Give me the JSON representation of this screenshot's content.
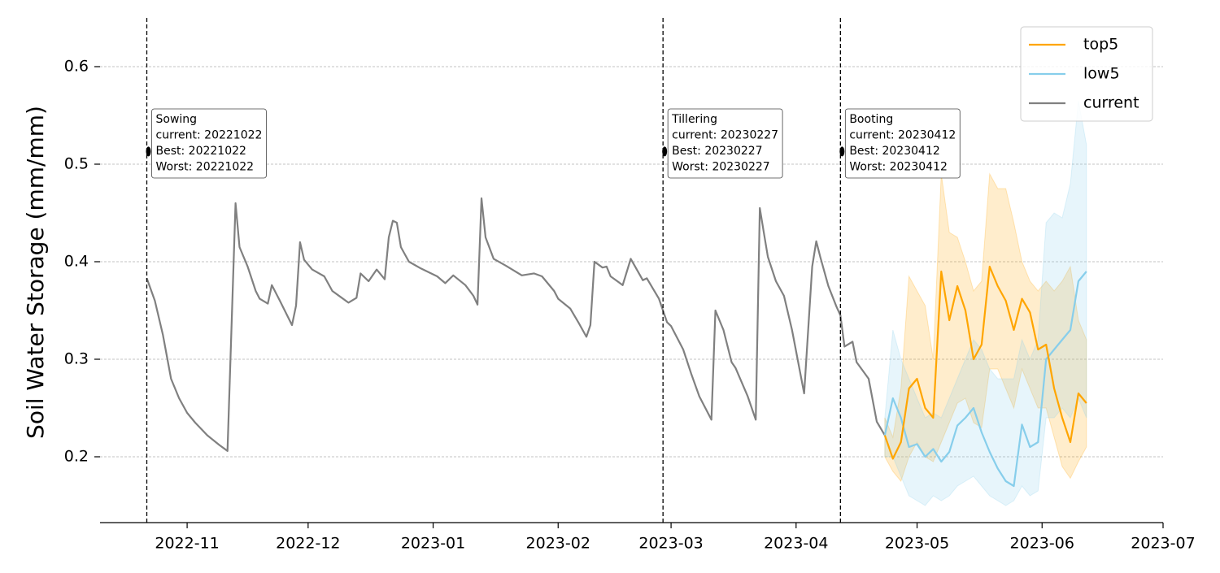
{
  "chart_data": {
    "type": "line",
    "ylabel": "Soil Water Storage (mm/mm)",
    "xlim": [
      "2022-10-10",
      "2023-07-01"
    ],
    "ylim": [
      0.1325,
      0.65
    ],
    "xticks": [
      {
        "value": "2022-11-01",
        "label": "2022-11"
      },
      {
        "value": "2022-12-01",
        "label": "2022-12"
      },
      {
        "value": "2023-01-01",
        "label": "2023-01"
      },
      {
        "value": "2023-02-01",
        "label": "2023-02"
      },
      {
        "value": "2023-03-01",
        "label": "2023-03"
      },
      {
        "value": "2023-04-01",
        "label": "2023-04"
      },
      {
        "value": "2023-05-01",
        "label": "2023-05"
      },
      {
        "value": "2023-06-01",
        "label": "2023-06"
      },
      {
        "value": "2023-07-01",
        "label": "2023-07"
      }
    ],
    "yticks": [
      0.2,
      0.3,
      0.4,
      0.5,
      0.6
    ],
    "grid": true,
    "legend": "upper right",
    "series": [
      {
        "name": "top5",
        "color": "#ffa500",
        "x": [
          "2023-04-23",
          "2023-04-25",
          "2023-04-27",
          "2023-04-29",
          "2023-05-01",
          "2023-05-03",
          "2023-05-05",
          "2023-05-07",
          "2023-05-09",
          "2023-05-11",
          "2023-05-13",
          "2023-05-15",
          "2023-05-17",
          "2023-05-19",
          "2023-05-21",
          "2023-05-23",
          "2023-05-25",
          "2023-05-27",
          "2023-05-29",
          "2023-05-31",
          "2023-06-02",
          "2023-06-04",
          "2023-06-06",
          "2023-06-08",
          "2023-06-10",
          "2023-06-12"
        ],
        "values": [
          0.222,
          0.198,
          0.215,
          0.27,
          0.28,
          0.25,
          0.24,
          0.39,
          0.34,
          0.375,
          0.35,
          0.3,
          0.315,
          0.395,
          0.375,
          0.36,
          0.33,
          0.362,
          0.348,
          0.31,
          0.315,
          0.27,
          0.24,
          0.215,
          0.265,
          0.255
        ],
        "upper": [
          0.24,
          0.22,
          0.27,
          0.385,
          0.37,
          0.355,
          0.3,
          0.49,
          0.43,
          0.425,
          0.4,
          0.37,
          0.38,
          0.49,
          0.475,
          0.475,
          0.44,
          0.4,
          0.38,
          0.37,
          0.38,
          0.37,
          0.38,
          0.395,
          0.34,
          0.32
        ],
        "lower": [
          0.2,
          0.185,
          0.175,
          0.2,
          0.215,
          0.2,
          0.195,
          0.215,
          0.235,
          0.255,
          0.26,
          0.235,
          0.23,
          0.29,
          0.29,
          0.27,
          0.25,
          0.29,
          0.27,
          0.25,
          0.25,
          0.22,
          0.19,
          0.178,
          0.195,
          0.21
        ]
      },
      {
        "name": "low5",
        "color": "#87ceeb",
        "x": [
          "2023-04-23",
          "2023-04-25",
          "2023-04-27",
          "2023-04-29",
          "2023-05-01",
          "2023-05-03",
          "2023-05-05",
          "2023-05-07",
          "2023-05-09",
          "2023-05-11",
          "2023-05-13",
          "2023-05-15",
          "2023-05-17",
          "2023-05-19",
          "2023-05-21",
          "2023-05-23",
          "2023-05-25",
          "2023-05-27",
          "2023-05-29",
          "2023-05-31",
          "2023-06-02",
          "2023-06-04",
          "2023-06-06",
          "2023-06-08",
          "2023-06-10",
          "2023-06-12"
        ],
        "values": [
          0.222,
          0.26,
          0.24,
          0.21,
          0.213,
          0.2,
          0.208,
          0.195,
          0.205,
          0.232,
          0.24,
          0.25,
          0.225,
          0.205,
          0.188,
          0.175,
          0.17,
          0.233,
          0.21,
          0.215,
          0.3,
          0.31,
          0.32,
          0.33,
          0.38,
          0.39
        ],
        "upper": [
          0.24,
          0.33,
          0.3,
          0.28,
          0.26,
          0.24,
          0.245,
          0.24,
          0.26,
          0.28,
          0.3,
          0.32,
          0.31,
          0.29,
          0.28,
          0.28,
          0.28,
          0.32,
          0.3,
          0.32,
          0.44,
          0.45,
          0.445,
          0.48,
          0.565,
          0.52
        ],
        "lower": [
          0.2,
          0.2,
          0.18,
          0.16,
          0.155,
          0.15,
          0.16,
          0.155,
          0.16,
          0.17,
          0.175,
          0.18,
          0.17,
          0.16,
          0.155,
          0.15,
          0.155,
          0.17,
          0.16,
          0.165,
          0.24,
          0.24,
          0.25,
          0.24,
          0.26,
          0.24
        ]
      },
      {
        "name": "current",
        "color": "#808080",
        "x": [
          "2022-10-22",
          "2022-10-24",
          "2022-10-26",
          "2022-10-28",
          "2022-10-30",
          "2022-11-01",
          "2022-11-03",
          "2022-11-06",
          "2022-11-09",
          "2022-11-11",
          "2022-11-13",
          "2022-11-14",
          "2022-11-16",
          "2022-11-18",
          "2022-11-19",
          "2022-11-21",
          "2022-11-22",
          "2022-11-24",
          "2022-11-27",
          "2022-11-28",
          "2022-11-29",
          "2022-11-30",
          "2022-12-02",
          "2022-12-05",
          "2022-12-07",
          "2022-12-09",
          "2022-12-11",
          "2022-12-13",
          "2022-12-14",
          "2022-12-16",
          "2022-12-18",
          "2022-12-20",
          "2022-12-21",
          "2022-12-22",
          "2022-12-23",
          "2022-12-24",
          "2022-12-26",
          "2022-12-29",
          "2023-01-02",
          "2023-01-04",
          "2023-01-06",
          "2023-01-09",
          "2023-01-11",
          "2023-01-12",
          "2023-01-13",
          "2023-01-14",
          "2023-01-16",
          "2023-01-19",
          "2023-01-21",
          "2023-01-23",
          "2023-01-26",
          "2023-01-28",
          "2023-01-31",
          "2023-02-01",
          "2023-02-04",
          "2023-02-06",
          "2023-02-08",
          "2023-02-09",
          "2023-02-10",
          "2023-02-12",
          "2023-02-13",
          "2023-02-14",
          "2023-02-17",
          "2023-02-19",
          "2023-02-22",
          "2023-02-23",
          "2023-02-26",
          "2023-02-28",
          "2023-03-01",
          "2023-03-04",
          "2023-03-06",
          "2023-03-08",
          "2023-03-11",
          "2023-03-12",
          "2023-03-14",
          "2023-03-16",
          "2023-03-17",
          "2023-03-20",
          "2023-03-22",
          "2023-03-23",
          "2023-03-24",
          "2023-03-25",
          "2023-03-27",
          "2023-03-29",
          "2023-03-31",
          "2023-04-03",
          "2023-04-05",
          "2023-04-06",
          "2023-04-07",
          "2023-04-09",
          "2023-04-11",
          "2023-04-12",
          "2023-04-13",
          "2023-04-15",
          "2023-04-16",
          "2023-04-19",
          "2023-04-21",
          "2023-04-23"
        ],
        "values": [
          0.383,
          0.36,
          0.325,
          0.28,
          0.26,
          0.245,
          0.235,
          0.222,
          0.212,
          0.206,
          0.46,
          0.415,
          0.395,
          0.37,
          0.362,
          0.357,
          0.376,
          0.36,
          0.335,
          0.355,
          0.42,
          0.402,
          0.392,
          0.385,
          0.37,
          0.364,
          0.358,
          0.363,
          0.388,
          0.38,
          0.392,
          0.382,
          0.425,
          0.442,
          0.44,
          0.415,
          0.4,
          0.393,
          0.385,
          0.378,
          0.386,
          0.376,
          0.365,
          0.356,
          0.465,
          0.425,
          0.403,
          0.396,
          0.391,
          0.386,
          0.388,
          0.385,
          0.37,
          0.362,
          0.352,
          0.338,
          0.323,
          0.335,
          0.4,
          0.394,
          0.395,
          0.385,
          0.376,
          0.403,
          0.381,
          0.383,
          0.362,
          0.338,
          0.334,
          0.31,
          0.285,
          0.262,
          0.238,
          0.35,
          0.33,
          0.297,
          0.291,
          0.262,
          0.238,
          0.455,
          0.43,
          0.405,
          0.38,
          0.365,
          0.33,
          0.265,
          0.395,
          0.421,
          0.405,
          0.375,
          0.354,
          0.345,
          0.313,
          0.318,
          0.297,
          0.28,
          0.236,
          0.222
        ]
      }
    ],
    "annotations": [
      {
        "x": "2022-10-22",
        "y": 0.513,
        "lines": [
          "Sowing",
          "current: 20221022",
          "Best: 20221022",
          "Worst: 20221022"
        ]
      },
      {
        "x": "2023-02-27",
        "y": 0.513,
        "lines": [
          "Tillering",
          "current: 20230227",
          "Best: 20230227",
          "Worst: 20230227"
        ]
      },
      {
        "x": "2023-04-12",
        "y": 0.513,
        "lines": [
          "Booting",
          "current: 20230412",
          "Best: 20230412",
          "Worst: 20230412"
        ]
      }
    ]
  }
}
